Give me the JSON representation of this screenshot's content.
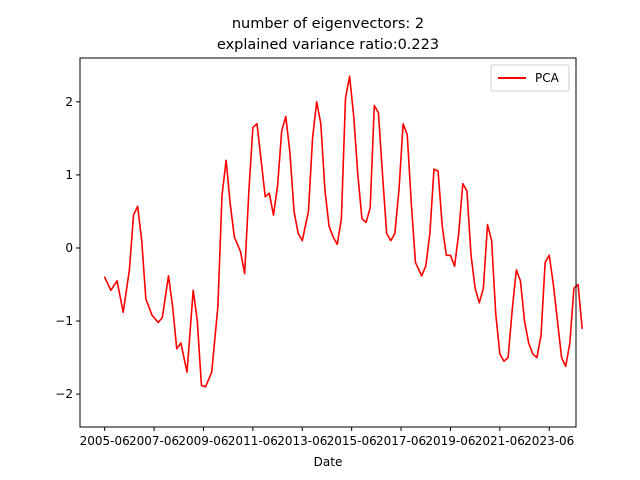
{
  "chart_data": {
    "type": "line",
    "title": "number of eigenvectors: 2",
    "subtitle": "explained variance ratio:0.223",
    "xlabel": "Date",
    "ylabel": "",
    "x_ticks": [
      "2005-06",
      "2007-06",
      "2009-06",
      "2011-06",
      "2013-06",
      "2015-06",
      "2017-06",
      "2019-06",
      "2021-06",
      "2023-06"
    ],
    "y_ticks": [
      -2,
      -1,
      0,
      1,
      2
    ],
    "xlim": [
      "2004-06",
      "2024-07"
    ],
    "ylim": [
      -2.45,
      2.6
    ],
    "grid": false,
    "legend_position": "top-right",
    "series": [
      {
        "name": "PCA",
        "color": "#ff0000",
        "points": [
          [
            "2005-06",
            -0.4
          ],
          [
            "2005-09",
            -0.58
          ],
          [
            "2005-12",
            -0.45
          ],
          [
            "2006-03",
            -0.88
          ],
          [
            "2006-06",
            -0.3
          ],
          [
            "2006-08",
            0.45
          ],
          [
            "2006-10",
            0.57
          ],
          [
            "2006-12",
            0.1
          ],
          [
            "2007-02",
            -0.7
          ],
          [
            "2007-05",
            -0.92
          ],
          [
            "2007-08",
            -1.02
          ],
          [
            "2007-10",
            -0.95
          ],
          [
            "2008-01",
            -0.38
          ],
          [
            "2008-03",
            -0.8
          ],
          [
            "2008-05",
            -1.38
          ],
          [
            "2008-07",
            -1.3
          ],
          [
            "2008-10",
            -1.7
          ],
          [
            "2009-01",
            -0.58
          ],
          [
            "2009-03",
            -1.0
          ],
          [
            "2009-05",
            -1.88
          ],
          [
            "2009-07",
            -1.9
          ],
          [
            "2009-10",
            -1.7
          ],
          [
            "2010-01",
            -0.8
          ],
          [
            "2010-03",
            0.72
          ],
          [
            "2010-05",
            1.2
          ],
          [
            "2010-07",
            0.6
          ],
          [
            "2010-09",
            0.15
          ],
          [
            "2010-12",
            -0.05
          ],
          [
            "2011-02",
            -0.35
          ],
          [
            "2011-04",
            0.75
          ],
          [
            "2011-06",
            1.65
          ],
          [
            "2011-08",
            1.7
          ],
          [
            "2011-10",
            1.2
          ],
          [
            "2011-12",
            0.7
          ],
          [
            "2012-02",
            0.75
          ],
          [
            "2012-04",
            0.45
          ],
          [
            "2012-06",
            0.85
          ],
          [
            "2012-08",
            1.6
          ],
          [
            "2012-10",
            1.8
          ],
          [
            "2012-12",
            1.3
          ],
          [
            "2013-02",
            0.5
          ],
          [
            "2013-04",
            0.2
          ],
          [
            "2013-06",
            0.1
          ],
          [
            "2013-09",
            0.5
          ],
          [
            "2013-11",
            1.5
          ],
          [
            "2014-01",
            2.0
          ],
          [
            "2014-03",
            1.7
          ],
          [
            "2014-05",
            0.8
          ],
          [
            "2014-07",
            0.3
          ],
          [
            "2014-09",
            0.15
          ],
          [
            "2014-11",
            0.05
          ],
          [
            "2015-01",
            0.4
          ],
          [
            "2015-03",
            2.05
          ],
          [
            "2015-05",
            2.35
          ],
          [
            "2015-07",
            1.8
          ],
          [
            "2015-09",
            1.0
          ],
          [
            "2015-11",
            0.4
          ],
          [
            "2016-01",
            0.35
          ],
          [
            "2016-03",
            0.55
          ],
          [
            "2016-05",
            1.95
          ],
          [
            "2016-07",
            1.85
          ],
          [
            "2016-09",
            1.0
          ],
          [
            "2016-11",
            0.2
          ],
          [
            "2017-01",
            0.1
          ],
          [
            "2017-03",
            0.2
          ],
          [
            "2017-05",
            0.8
          ],
          [
            "2017-07",
            1.7
          ],
          [
            "2017-09",
            1.55
          ],
          [
            "2017-11",
            0.6
          ],
          [
            "2018-01",
            -0.2
          ],
          [
            "2018-04",
            -0.38
          ],
          [
            "2018-06",
            -0.25
          ],
          [
            "2018-08",
            0.2
          ],
          [
            "2018-10",
            1.08
          ],
          [
            "2018-12",
            1.05
          ],
          [
            "2019-02",
            0.3
          ],
          [
            "2019-04",
            -0.1
          ],
          [
            "2019-06",
            -0.1
          ],
          [
            "2019-08",
            -0.25
          ],
          [
            "2019-10",
            0.2
          ],
          [
            "2019-12",
            0.88
          ],
          [
            "2020-02",
            0.78
          ],
          [
            "2020-04",
            -0.1
          ],
          [
            "2020-06",
            -0.55
          ],
          [
            "2020-08",
            -0.75
          ],
          [
            "2020-10",
            -0.55
          ],
          [
            "2020-12",
            0.32
          ],
          [
            "2021-02",
            0.1
          ],
          [
            "2021-04",
            -0.9
          ],
          [
            "2021-06",
            -1.45
          ],
          [
            "2021-08",
            -1.55
          ],
          [
            "2021-10",
            -1.5
          ],
          [
            "2021-12",
            -0.85
          ],
          [
            "2022-02",
            -0.3
          ],
          [
            "2022-04",
            -0.45
          ],
          [
            "2022-06",
            -1.0
          ],
          [
            "2022-08",
            -1.3
          ],
          [
            "2022-10",
            -1.45
          ],
          [
            "2022-12",
            -1.5
          ],
          [
            "2023-02",
            -1.2
          ],
          [
            "2023-04",
            -0.2
          ],
          [
            "2023-06",
            -0.1
          ],
          [
            "2023-08",
            -0.5
          ],
          [
            "2023-10",
            -1.0
          ],
          [
            "2023-12",
            -1.5
          ],
          [
            "2024-02",
            -1.62
          ],
          [
            "2024-04",
            -1.3
          ],
          [
            "2024-06",
            -0.55
          ],
          [
            "2024-08",
            -0.5
          ],
          [
            "2024-10",
            -1.1
          ]
        ]
      }
    ]
  },
  "legend": {
    "items": [
      {
        "label": "PCA",
        "color": "#ff0000"
      }
    ]
  }
}
